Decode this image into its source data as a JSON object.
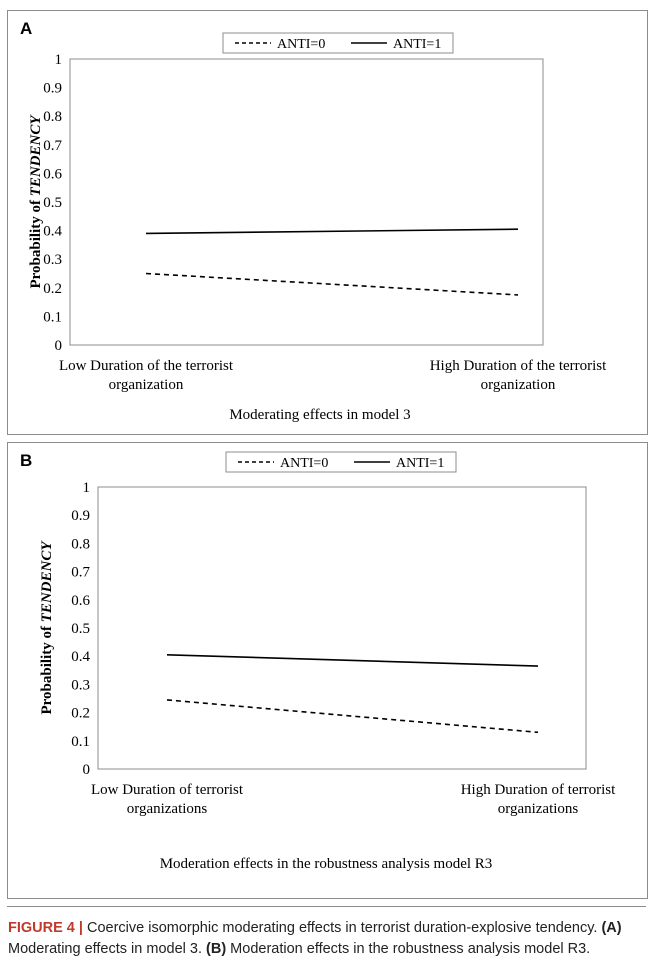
{
  "chart_data": [
    {
      "type": "line",
      "panel_label": "A",
      "categories": [
        "Low Duration of the terrorist organization",
        "High Duration of the terrorist organization"
      ],
      "series": [
        {
          "name": "ANTI=0",
          "style": "dashed",
          "values": [
            0.25,
            0.175
          ]
        },
        {
          "name": "ANTI=1",
          "style": "solid",
          "values": [
            0.39,
            0.405
          ]
        }
      ],
      "ylabel_prefix": "Probability of ",
      "ylabel_italic": "TENDENCY",
      "ylim": [
        0,
        1
      ],
      "yticks": [
        "0",
        "0.1",
        "0.2",
        "0.3",
        "0.4",
        "0.5",
        "0.6",
        "0.7",
        "0.8",
        "0.9",
        "1"
      ],
      "legend_position": "top-center",
      "subtitle": "Moderating effects in model 3"
    },
    {
      "type": "line",
      "panel_label": "B",
      "categories": [
        "Low Duration of terrorist organizations",
        "High Duration of terrorist organizations"
      ],
      "series": [
        {
          "name": "ANTI=0",
          "style": "dashed",
          "values": [
            0.245,
            0.13
          ]
        },
        {
          "name": "ANTI=1",
          "style": "solid",
          "values": [
            0.405,
            0.365
          ]
        }
      ],
      "ylabel_prefix": "Probability of ",
      "ylabel_italic": "TENDENCY",
      "ylim": [
        0,
        1
      ],
      "yticks": [
        "0",
        "0.1",
        "0.2",
        "0.3",
        "0.4",
        "0.5",
        "0.6",
        "0.7",
        "0.8",
        "0.9",
        "1"
      ],
      "legend_position": "top-center",
      "subtitle": "Moderation effects in the robustness analysis model R3"
    }
  ],
  "caption": {
    "figure_label": "FIGURE 4 |",
    "text": " Coercive isomorphic moderating effects in terrorist duration-explosive tendency. ",
    "a_label": "(A)",
    "a_text": " Moderating effects in model 3. ",
    "b_label": "(B)",
    "b_text": " Moderation effects in the robustness analysis model R3."
  },
  "colors": {
    "line": "#000000",
    "border": "#8c8c8c",
    "figure_label": "#c0392b"
  }
}
